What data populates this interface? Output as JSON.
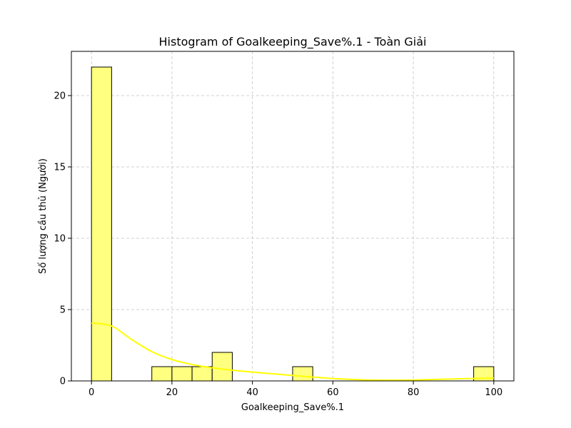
{
  "chart_data": {
    "type": "bar",
    "title": "Histogram of Goalkeeping_Save%.1 - Toàn Giải",
    "xlabel": "Goalkeeping_Save%.1",
    "ylabel": "Số lượng cầu thủ (Người)",
    "xlim": [
      -5,
      105
    ],
    "ylim": [
      0,
      23.1
    ],
    "x_ticks": [
      0,
      20,
      40,
      60,
      80,
      100
    ],
    "y_ticks": [
      0,
      5,
      10,
      15,
      20
    ],
    "grid": true,
    "colors": {
      "bar_fill": "#ffff80",
      "bar_edge": "#000000",
      "kde_line": "#ffff00"
    },
    "bins": [
      {
        "start": 0,
        "end": 5,
        "count": 22
      },
      {
        "start": 5,
        "end": 10,
        "count": 0
      },
      {
        "start": 10,
        "end": 15,
        "count": 0
      },
      {
        "start": 15,
        "end": 20,
        "count": 1
      },
      {
        "start": 20,
        "end": 25,
        "count": 1
      },
      {
        "start": 25,
        "end": 30,
        "count": 1
      },
      {
        "start": 30,
        "end": 35,
        "count": 2
      },
      {
        "start": 35,
        "end": 40,
        "count": 0
      },
      {
        "start": 40,
        "end": 45,
        "count": 0
      },
      {
        "start": 45,
        "end": 50,
        "count": 0
      },
      {
        "start": 50,
        "end": 55,
        "count": 1
      },
      {
        "start": 55,
        "end": 60,
        "count": 0
      },
      {
        "start": 60,
        "end": 65,
        "count": 0
      },
      {
        "start": 65,
        "end": 70,
        "count": 0
      },
      {
        "start": 70,
        "end": 75,
        "count": 0
      },
      {
        "start": 75,
        "end": 80,
        "count": 0
      },
      {
        "start": 80,
        "end": 85,
        "count": 0
      },
      {
        "start": 85,
        "end": 90,
        "count": 0
      },
      {
        "start": 90,
        "end": 95,
        "count": 0
      },
      {
        "start": 95,
        "end": 100,
        "count": 1
      }
    ],
    "kde": {
      "x": [
        0,
        5,
        10,
        15,
        20,
        25,
        30,
        35,
        40,
        45,
        50,
        55,
        60,
        65,
        70,
        75,
        80,
        85,
        90,
        95,
        100
      ],
      "y": [
        4.05,
        3.85,
        2.9,
        2.05,
        1.5,
        1.15,
        0.92,
        0.75,
        0.62,
        0.5,
        0.38,
        0.27,
        0.17,
        0.1,
        0.06,
        0.05,
        0.06,
        0.1,
        0.14,
        0.17,
        0.2
      ]
    }
  }
}
